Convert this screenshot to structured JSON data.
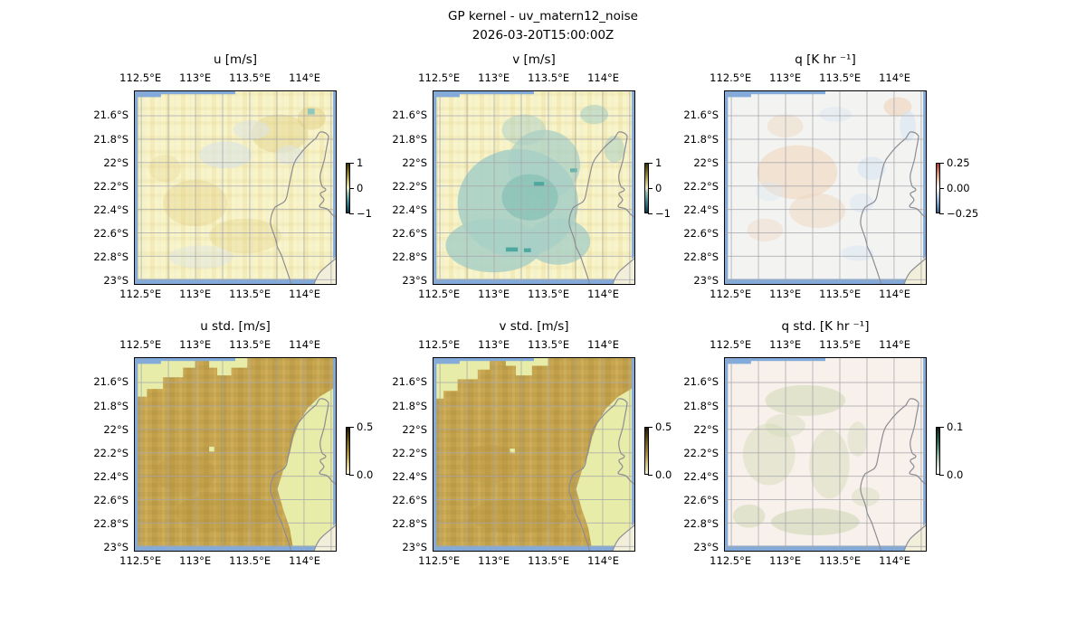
{
  "figure": {
    "suptitle_line1": "GP kernel - uv_matern12_noise",
    "suptitle_line2": "2026-03-20T15:00:00Z"
  },
  "colors": {
    "ocean": "#82abdb",
    "land": "#f1eeda",
    "grid": "#a5a5ab",
    "coast": "#8c8c94",
    "frame": "#000000",
    "uv_base": "#f9f4c7",
    "uv_tan_patch": "#dfcc80",
    "uv_bluegray_patch": "#dde5e1",
    "v_teal": "#a9d0c5",
    "v_teal_dark": "#4fa8a0",
    "q_base": "#f3f4f2",
    "q_orange_patch": "#f0d5bd",
    "q_blue_patch": "#d7e4f1",
    "std_olive": "#c9a750",
    "std_pale_green": "#e7eda8",
    "qstd_base": "#f8f0ea",
    "qstd_sage": "#ccd6b0"
  },
  "axes": {
    "lon_ticks": [
      {
        "label": "112.5°E",
        "pct": 3.2
      },
      {
        "label": "113°E",
        "pct": 30.2
      },
      {
        "label": "113.5°E",
        "pct": 57.2
      },
      {
        "label": "114°E",
        "pct": 84.2
      }
    ],
    "lat_ticks": [
      {
        "label": "21.6°S",
        "pct": 12.7
      },
      {
        "label": "21.8°S",
        "pct": 24.9
      },
      {
        "label": "22°S",
        "pct": 37.0
      },
      {
        "label": "22.2°S",
        "pct": 49.2
      },
      {
        "label": "22.4°S",
        "pct": 61.3
      },
      {
        "label": "22.6°S",
        "pct": 73.5
      },
      {
        "label": "22.8°S",
        "pct": 85.6
      },
      {
        "label": "23°S",
        "pct": 97.8
      }
    ],
    "lon_grid_pcts": [
      3.2,
      16.7,
      30.2,
      43.7,
      57.2,
      70.7,
      84.2,
      97.7
    ],
    "lat_grid_pcts": [
      12.7,
      24.9,
      37.0,
      49.2,
      61.3,
      73.5,
      85.6,
      97.8
    ]
  },
  "panels": [
    {
      "key": "u",
      "title": "u [m/s]",
      "colorbar": {
        "style": "delta",
        "ticks": [
          {
            "label": "1",
            "pct": 0
          },
          {
            "label": "0",
            "pct": 50
          },
          {
            "label": "−1",
            "pct": 100
          }
        ]
      }
    },
    {
      "key": "v",
      "title": "v [m/s]",
      "colorbar": {
        "style": "delta",
        "ticks": [
          {
            "label": "1",
            "pct": 0
          },
          {
            "label": "0",
            "pct": 50
          },
          {
            "label": "−1",
            "pct": 100
          }
        ]
      }
    },
    {
      "key": "q",
      "title": "q [K hr ⁻¹]",
      "colorbar": {
        "style": "rdbu",
        "ticks": [
          {
            "label": "0.25",
            "pct": 0
          },
          {
            "label": "0.00",
            "pct": 50
          },
          {
            "label": "−0.25",
            "pct": 100
          }
        ]
      }
    },
    {
      "key": "u_std",
      "title": "u std. [m/s]",
      "colorbar": {
        "style": "olive",
        "ticks": [
          {
            "label": "0.5",
            "pct": 0
          },
          {
            "label": "0.0",
            "pct": 100
          }
        ]
      }
    },
    {
      "key": "v_std",
      "title": "v std. [m/s]",
      "colorbar": {
        "style": "olive",
        "ticks": [
          {
            "label": "0.5",
            "pct": 0
          },
          {
            "label": "0.0",
            "pct": 100
          }
        ]
      }
    },
    {
      "key": "q_std",
      "title": "q std. [K hr ⁻¹]",
      "colorbar": {
        "style": "green",
        "ticks": [
          {
            "label": "0.1",
            "pct": 0
          },
          {
            "label": "0.0",
            "pct": 100
          }
        ]
      }
    }
  ],
  "chart_data": {
    "type": "heatmap",
    "suptitle": "GP kernel - uv_matern12_noise",
    "timestamp": "2026-03-20T15:00:00Z",
    "layout": "2 rows x 3 columns of geographic heatmaps, each with its own thin vertical colorbar; gridlines on; coastline overlay",
    "shared_axes": {
      "lon_tick_values_deg_E": [
        112.5,
        113,
        113.5,
        114
      ],
      "lat_tick_values_deg_S": [
        21.6,
        21.8,
        22,
        22.2,
        22.4,
        22.6,
        22.8,
        23
      ],
      "lon_extent_deg_E_est": [
        112.45,
        114.25
      ],
      "lat_extent_deg_S_est": [
        21.4,
        23.05
      ],
      "gridline_spacing": {
        "lon_deg": 0.25,
        "lat_deg": 0.2
      },
      "x_labels_shown": "top and bottom of every panel",
      "y_labels_shown": "left of every panel"
    },
    "coastline_region_note": "narrow north-pointing peninsula with gulf to its east (drawn as gray outline over the field)",
    "panels": [
      {
        "row": 0,
        "col": 0,
        "title": "u [m/s]",
        "colorbar_ticks": [
          1,
          0,
          -1
        ],
        "approx_value_range": [
          -1,
          1
        ],
        "field_summary": "near zero everywhere (pale yellow, ~0 to +0.2); weak positive tan speckle scattered across the domain and slight negative gray-blue patches in the upper center and right"
      },
      {
        "row": 0,
        "col": 1,
        "title": "v [m/s]",
        "colorbar_ticks": [
          1,
          0,
          -1
        ],
        "approx_value_range": [
          -1,
          1
        ],
        "field_summary": "broad weak negative region (teal, ~ -0.2 to -0.5, darkest pixels ~ -0.6) covering center and southwest; near zero (pale yellow) along the north edge and east of the coastline"
      },
      {
        "row": 0,
        "col": 2,
        "title": "q [K hr ⁻¹]",
        "colorbar_ticks": [
          0.25,
          0.0,
          -0.25
        ],
        "approx_value_range": [
          -0.25,
          0.25
        ],
        "field_summary": "mostly ~0 (white); faint positive patches (light orange, ~ +0.05) in the center-west and faint negative patches (light blue, ~ -0.05) near the coast and northeast corner"
      },
      {
        "row": 1,
        "col": 0,
        "title": "u std. [m/s]",
        "colorbar_ticks": [
          0.5,
          0.0
        ],
        "approx_value_range": [
          0,
          0.5
        ],
        "field_summary": "high std (~0.4, olive) over most of the domain; low std (~0.1, pale yellow-green) in the stepped northwest corner, a notch at top-center, and everywhere east of the coastline"
      },
      {
        "row": 1,
        "col": 1,
        "title": "v std. [m/s]",
        "colorbar_ticks": [
          0.5,
          0.0
        ],
        "approx_value_range": [
          0,
          0.5
        ],
        "field_summary": "same pattern as u std.: high (~0.4, olive) over the open-ocean interior, low (~0.1, pale yellow-green) northwest corner, top-center notch and east of the coast"
      },
      {
        "row": 1,
        "col": 2,
        "title": "q std. [K hr ⁻¹]",
        "colorbar_ticks": [
          0.1,
          0.0
        ],
        "approx_value_range": [
          0,
          0.1
        ],
        "field_summary": "low everywhere (~0.01-0.03, near-white pink); slightly higher values (~0.04, pale sage green) in bands through the center, along the coast and across the south"
      }
    ]
  }
}
